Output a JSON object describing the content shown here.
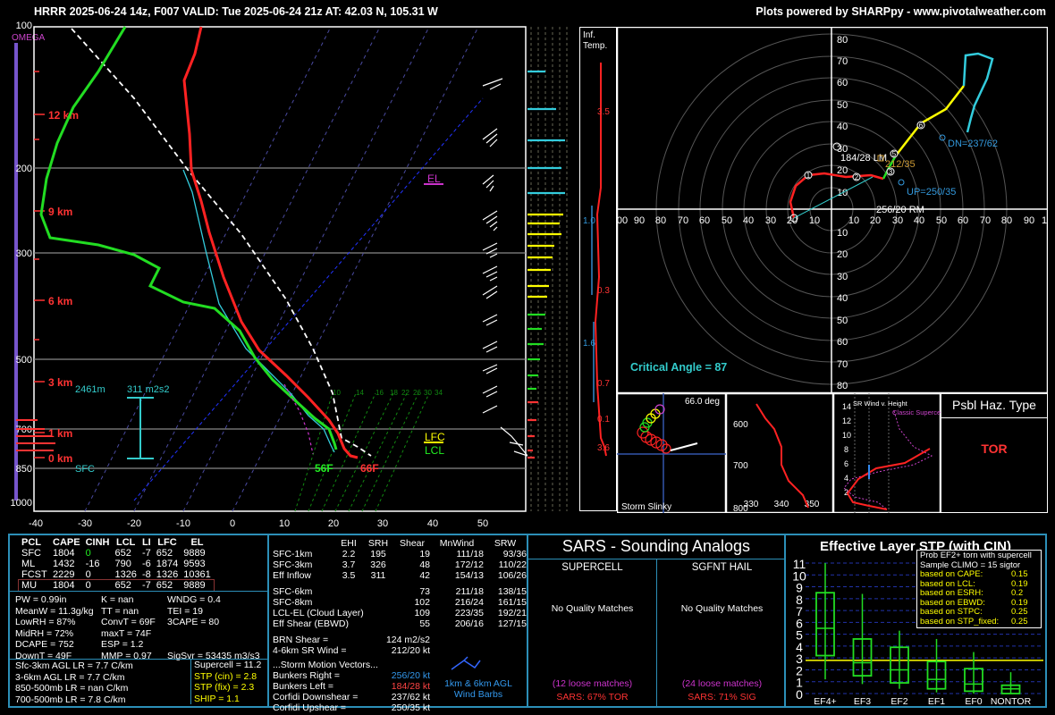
{
  "header": {
    "title": "HRRR 2025-06-24 14z, F007  VALID: Tue 2025-06-24 21z  AT: 42.03 N, 105.31 W",
    "credit": "Plots powered by SHARPpy - www.pivotalweather.com"
  },
  "skewt": {
    "omega_label": "OMEGA",
    "pressure_ticks": [
      "100",
      "200",
      "300",
      "500",
      "700",
      "850",
      "1000"
    ],
    "temp_ticks": [
      "-40",
      "-30",
      "-20",
      "-10",
      "0",
      "10",
      "20",
      "30",
      "40",
      "50"
    ],
    "height_labels": [
      "12 km",
      "9 km",
      "6 km",
      "3 km",
      "1 km",
      "0 km"
    ],
    "el_label": "EL",
    "lfc_label": "LFC",
    "lcl_label": "LCL",
    "sfc_label": "SFC",
    "td_label": "56F",
    "t_label": "66F",
    "eff_inflow_height": "2461m",
    "eff_inflow_srh": "311 m2s2",
    "mixing_ratios": [
      "10",
      "14",
      "16",
      "18",
      "22",
      "26",
      "30",
      "34"
    ]
  },
  "inf_temp": {
    "title_line1": "Inf.",
    "title_line2": "Temp.",
    "values": [
      "3.5",
      "1.0",
      "0.3",
      "1.6",
      "0.7",
      "0.1",
      "3.6"
    ]
  },
  "hodograph": {
    "x_ticks": [
      "00",
      "90",
      "80",
      "70",
      "60",
      "50",
      "40",
      "30",
      "20",
      "10",
      "10",
      "20",
      "30",
      "40",
      "50",
      "60",
      "70",
      "80",
      "90",
      "1"
    ],
    "y_ticks_up": [
      "80",
      "70",
      "60",
      "50",
      "40",
      "30",
      "20",
      "10"
    ],
    "y_ticks_down": [
      "10",
      "20",
      "30",
      "40",
      "50",
      "60",
      "70",
      "80"
    ],
    "lm_label": "184/28 LM",
    "rm_label": "256/20 RM",
    "mean_label": "212/35",
    "dn_label": "DN=237/62",
    "up_label": "UP=250/35",
    "critical_angle": "Critical Angle = 87",
    "height_marks": [
      "1",
      "2",
      "3",
      "5",
      "6"
    ]
  },
  "slinky": {
    "angle": "66.0 deg",
    "label": "Storm Slinky"
  },
  "theta": {
    "y_ticks": [
      "600",
      "700",
      "800"
    ],
    "x_ticks": [
      "330",
      "340",
      "350"
    ]
  },
  "srwind": {
    "title": "SR Wind v. Height",
    "legend": "Classic Supercell",
    "y_ticks": [
      "14",
      "12",
      "10",
      "8",
      "6",
      "4",
      "2"
    ]
  },
  "hazard": {
    "title": "Psbl Haz. Type",
    "value": "TOR"
  },
  "parcels": {
    "headers": [
      "PCL",
      "CAPE",
      "CINH",
      "LCL",
      "LI",
      "LFC",
      "EL"
    ],
    "rows": [
      [
        "SFC",
        "1804",
        "0",
        "652",
        "-7",
        "652",
        "9889"
      ],
      [
        "ML",
        "1432",
        "-16",
        "790",
        "-6",
        "1874",
        "9593"
      ],
      [
        "FCST",
        "2229",
        "0",
        "1326",
        "-8",
        "1326",
        "10361"
      ],
      [
        "MU",
        "1804",
        "0",
        "652",
        "-7",
        "652",
        "9889"
      ]
    ],
    "thermo_left": [
      "PW = 0.99in",
      "MeanW = 11.3g/kg",
      "LowRH = 87%",
      "MidRH = 72%",
      "DCAPE = 752",
      "DownT = 49F"
    ],
    "thermo_mid": [
      "K = nan",
      "TT = nan",
      "ConvT = 69F",
      "maxT = 74F",
      "ESP = 1.2",
      "MMP = 0.97"
    ],
    "thermo_right": [
      "WNDG = 0.4",
      "TEI = 19",
      "3CAPE = 80",
      "",
      "",
      "SigSvr = 53435 m3/s3"
    ],
    "lapse": [
      "Sfc-3km AGL LR = 7.7 C/km",
      "3-6km AGL LR = 7.7 C/km",
      "850-500mb LR = nan C/km",
      "700-500mb LR = 7.8 C/km"
    ],
    "composite": [
      "Supercell = 11.2",
      "STP (cin) = 2.8",
      "STP (fix) = 2.3",
      "SHIP = 1.1"
    ]
  },
  "kinematics": {
    "headers": [
      "",
      "EHI",
      "SRH",
      "Shear",
      "MnWind",
      "SRW"
    ],
    "rows1": [
      [
        "SFC-1km",
        "2.2",
        "195",
        "19",
        "111/18",
        "93/36"
      ],
      [
        "SFC-3km",
        "3.7",
        "326",
        "48",
        "172/12",
        "110/22"
      ],
      [
        "Eff Inflow",
        "3.5",
        "311",
        "42",
        "154/13",
        "106/26"
      ]
    ],
    "rows2": [
      [
        "SFC-6km",
        "",
        "",
        "73",
        "211/18",
        "138/15"
      ],
      [
        "SFC-8km",
        "",
        "",
        "102",
        "216/24",
        "161/15"
      ],
      [
        "LCL-EL (Cloud Layer)",
        "",
        "",
        "109",
        "223/35",
        "192/21"
      ],
      [
        "Eff Shear (EBWD)",
        "",
        "",
        "55",
        "206/16",
        "127/15"
      ]
    ],
    "brn_shear": [
      "BRN Shear =",
      "124 m2/s2"
    ],
    "sr_wind": [
      "4-6km SR Wind =",
      "212/20 kt"
    ],
    "storm_motion_title": "...Storm Motion Vectors...",
    "storm_motion": [
      [
        "Bunkers Right =",
        "256/20 kt"
      ],
      [
        "Bunkers Left =",
        "184/28 kt"
      ],
      [
        "Corfidi Downshear =",
        "237/62 kt"
      ],
      [
        "Corfidi Upshear =",
        "250/35 kt"
      ]
    ],
    "barb_legend": "1km & 6km AGL Wind Barbs"
  },
  "sars": {
    "title": "SARS - Sounding Analogs",
    "col1_title": "SUPERCELL",
    "col2_title": "SGFNT HAIL",
    "col1_match": "No Quality Matches",
    "col2_match": "No Quality Matches",
    "col1_loose": "(12 loose matches)",
    "col2_loose": "(24 loose matches)",
    "col1_pct": "SARS: 67% TOR",
    "col2_pct": "SARS: 71% SIG"
  },
  "chart_data": {
    "type": "box",
    "title": "Effective Layer STP (with CIN)",
    "categories": [
      "EF4+",
      "EF3",
      "EF2",
      "EF1",
      "EF0",
      "NONTOR"
    ],
    "y_ticks": [
      "0",
      "1",
      "2",
      "3",
      "4",
      "5",
      "6",
      "7",
      "8",
      "9",
      "10",
      "11"
    ],
    "ylim": [
      0,
      11
    ],
    "current_value": 2.8,
    "boxes": [
      {
        "low": 1.2,
        "q1": 3.2,
        "median": 5.5,
        "q3": 8.5,
        "high": 11.0
      },
      {
        "low": 0.8,
        "q1": 1.5,
        "median": 2.6,
        "q3": 4.6,
        "high": 8.4
      },
      {
        "low": 0.4,
        "q1": 0.9,
        "median": 2.0,
        "q3": 3.9,
        "high": 5.3
      },
      {
        "low": 0.1,
        "q1": 0.4,
        "median": 1.2,
        "q3": 2.7,
        "high": 4.6
      },
      {
        "low": 0.0,
        "q1": 0.2,
        "median": 0.8,
        "q3": 2.1,
        "high": 3.5
      },
      {
        "low": 0.0,
        "q1": 0.0,
        "median": 0.4,
        "q3": 0.7,
        "high": 1.8
      }
    ],
    "legend_lines": [
      [
        "Prob EF2+ torn with supercell",
        ""
      ],
      [
        "Sample CLIMO = 15 sigtor",
        ""
      ],
      [
        "based on CAPE:",
        "0.15"
      ],
      [
        "based on LCL:",
        "0.19"
      ],
      [
        "based on ESRH:",
        "0.2"
      ],
      [
        "based on EBWD:",
        "0.19"
      ],
      [
        "based on STPC:",
        "0.25"
      ],
      [
        "based on STP_fixed:",
        "0.25"
      ]
    ]
  }
}
